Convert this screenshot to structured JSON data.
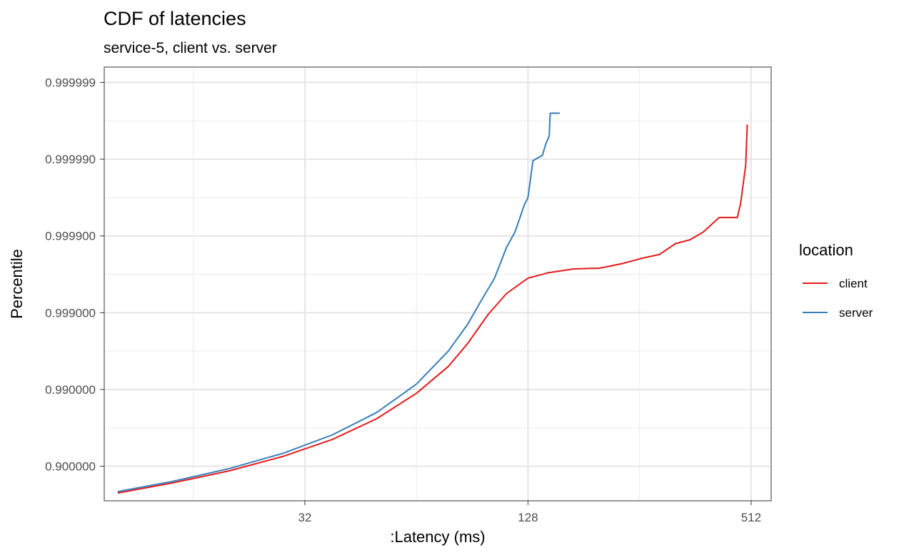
{
  "chart_data": {
    "type": "line",
    "title": "CDF of latencies",
    "subtitle": "service-5, client vs. server",
    "xlabel": ":Latency (ms)",
    "ylabel": "Percentile",
    "x_scale": "log2",
    "y_scale": "nines",
    "xlim": [
      9.2,
      580
    ],
    "y_nines_range": [
      0.55,
      6.2
    ],
    "x_ticks": [
      32,
      128,
      512
    ],
    "x_tick_labels": [
      "32",
      "128",
      "512"
    ],
    "y_ticks": [
      0.9,
      0.99,
      0.999,
      0.9999,
      0.99999,
      0.999999
    ],
    "y_tick_labels": [
      "0.900000",
      "0.990000",
      "0.999000",
      "0.999900",
      "0.999990",
      "0.999999"
    ],
    "grid": true,
    "legend": {
      "title": "location",
      "position": "right"
    },
    "series": [
      {
        "name": "client",
        "color": "#e41a1c",
        "points": [
          [
            10,
            0.65
          ],
          [
            14,
            0.78
          ],
          [
            20,
            0.94
          ],
          [
            28,
            1.13
          ],
          [
            38,
            1.35
          ],
          [
            50,
            1.62
          ],
          [
            64,
            1.95
          ],
          [
            78,
            2.3
          ],
          [
            88,
            2.6
          ],
          [
            100,
            2.98
          ],
          [
            112,
            3.25
          ],
          [
            128,
            3.45
          ],
          [
            145,
            3.52
          ],
          [
            170,
            3.57
          ],
          [
            200,
            3.58
          ],
          [
            230,
            3.64
          ],
          [
            260,
            3.71
          ],
          [
            290,
            3.76
          ],
          [
            320,
            3.9
          ],
          [
            350,
            3.95
          ],
          [
            380,
            4.05
          ],
          [
            420,
            4.24
          ],
          [
            470,
            4.24
          ],
          [
            480,
            4.43
          ],
          [
            495,
            4.92
          ],
          [
            500,
            5.45
          ]
        ]
      },
      {
        "name": "server",
        "color": "#377eb8",
        "points": [
          [
            10,
            0.67
          ],
          [
            14,
            0.8
          ],
          [
            20,
            0.97
          ],
          [
            28,
            1.17
          ],
          [
            38,
            1.41
          ],
          [
            50,
            1.7
          ],
          [
            64,
            2.07
          ],
          [
            78,
            2.5
          ],
          [
            88,
            2.85
          ],
          [
            96,
            3.17
          ],
          [
            104,
            3.45
          ],
          [
            112,
            3.85
          ],
          [
            118,
            4.05
          ],
          [
            125,
            4.4
          ],
          [
            128,
            4.5
          ],
          [
            132,
            4.98
          ],
          [
            140,
            5.05
          ],
          [
            143,
            5.2
          ],
          [
            146,
            5.3
          ],
          [
            147,
            5.6
          ],
          [
            150,
            5.6
          ],
          [
            156,
            5.6
          ]
        ]
      }
    ]
  }
}
